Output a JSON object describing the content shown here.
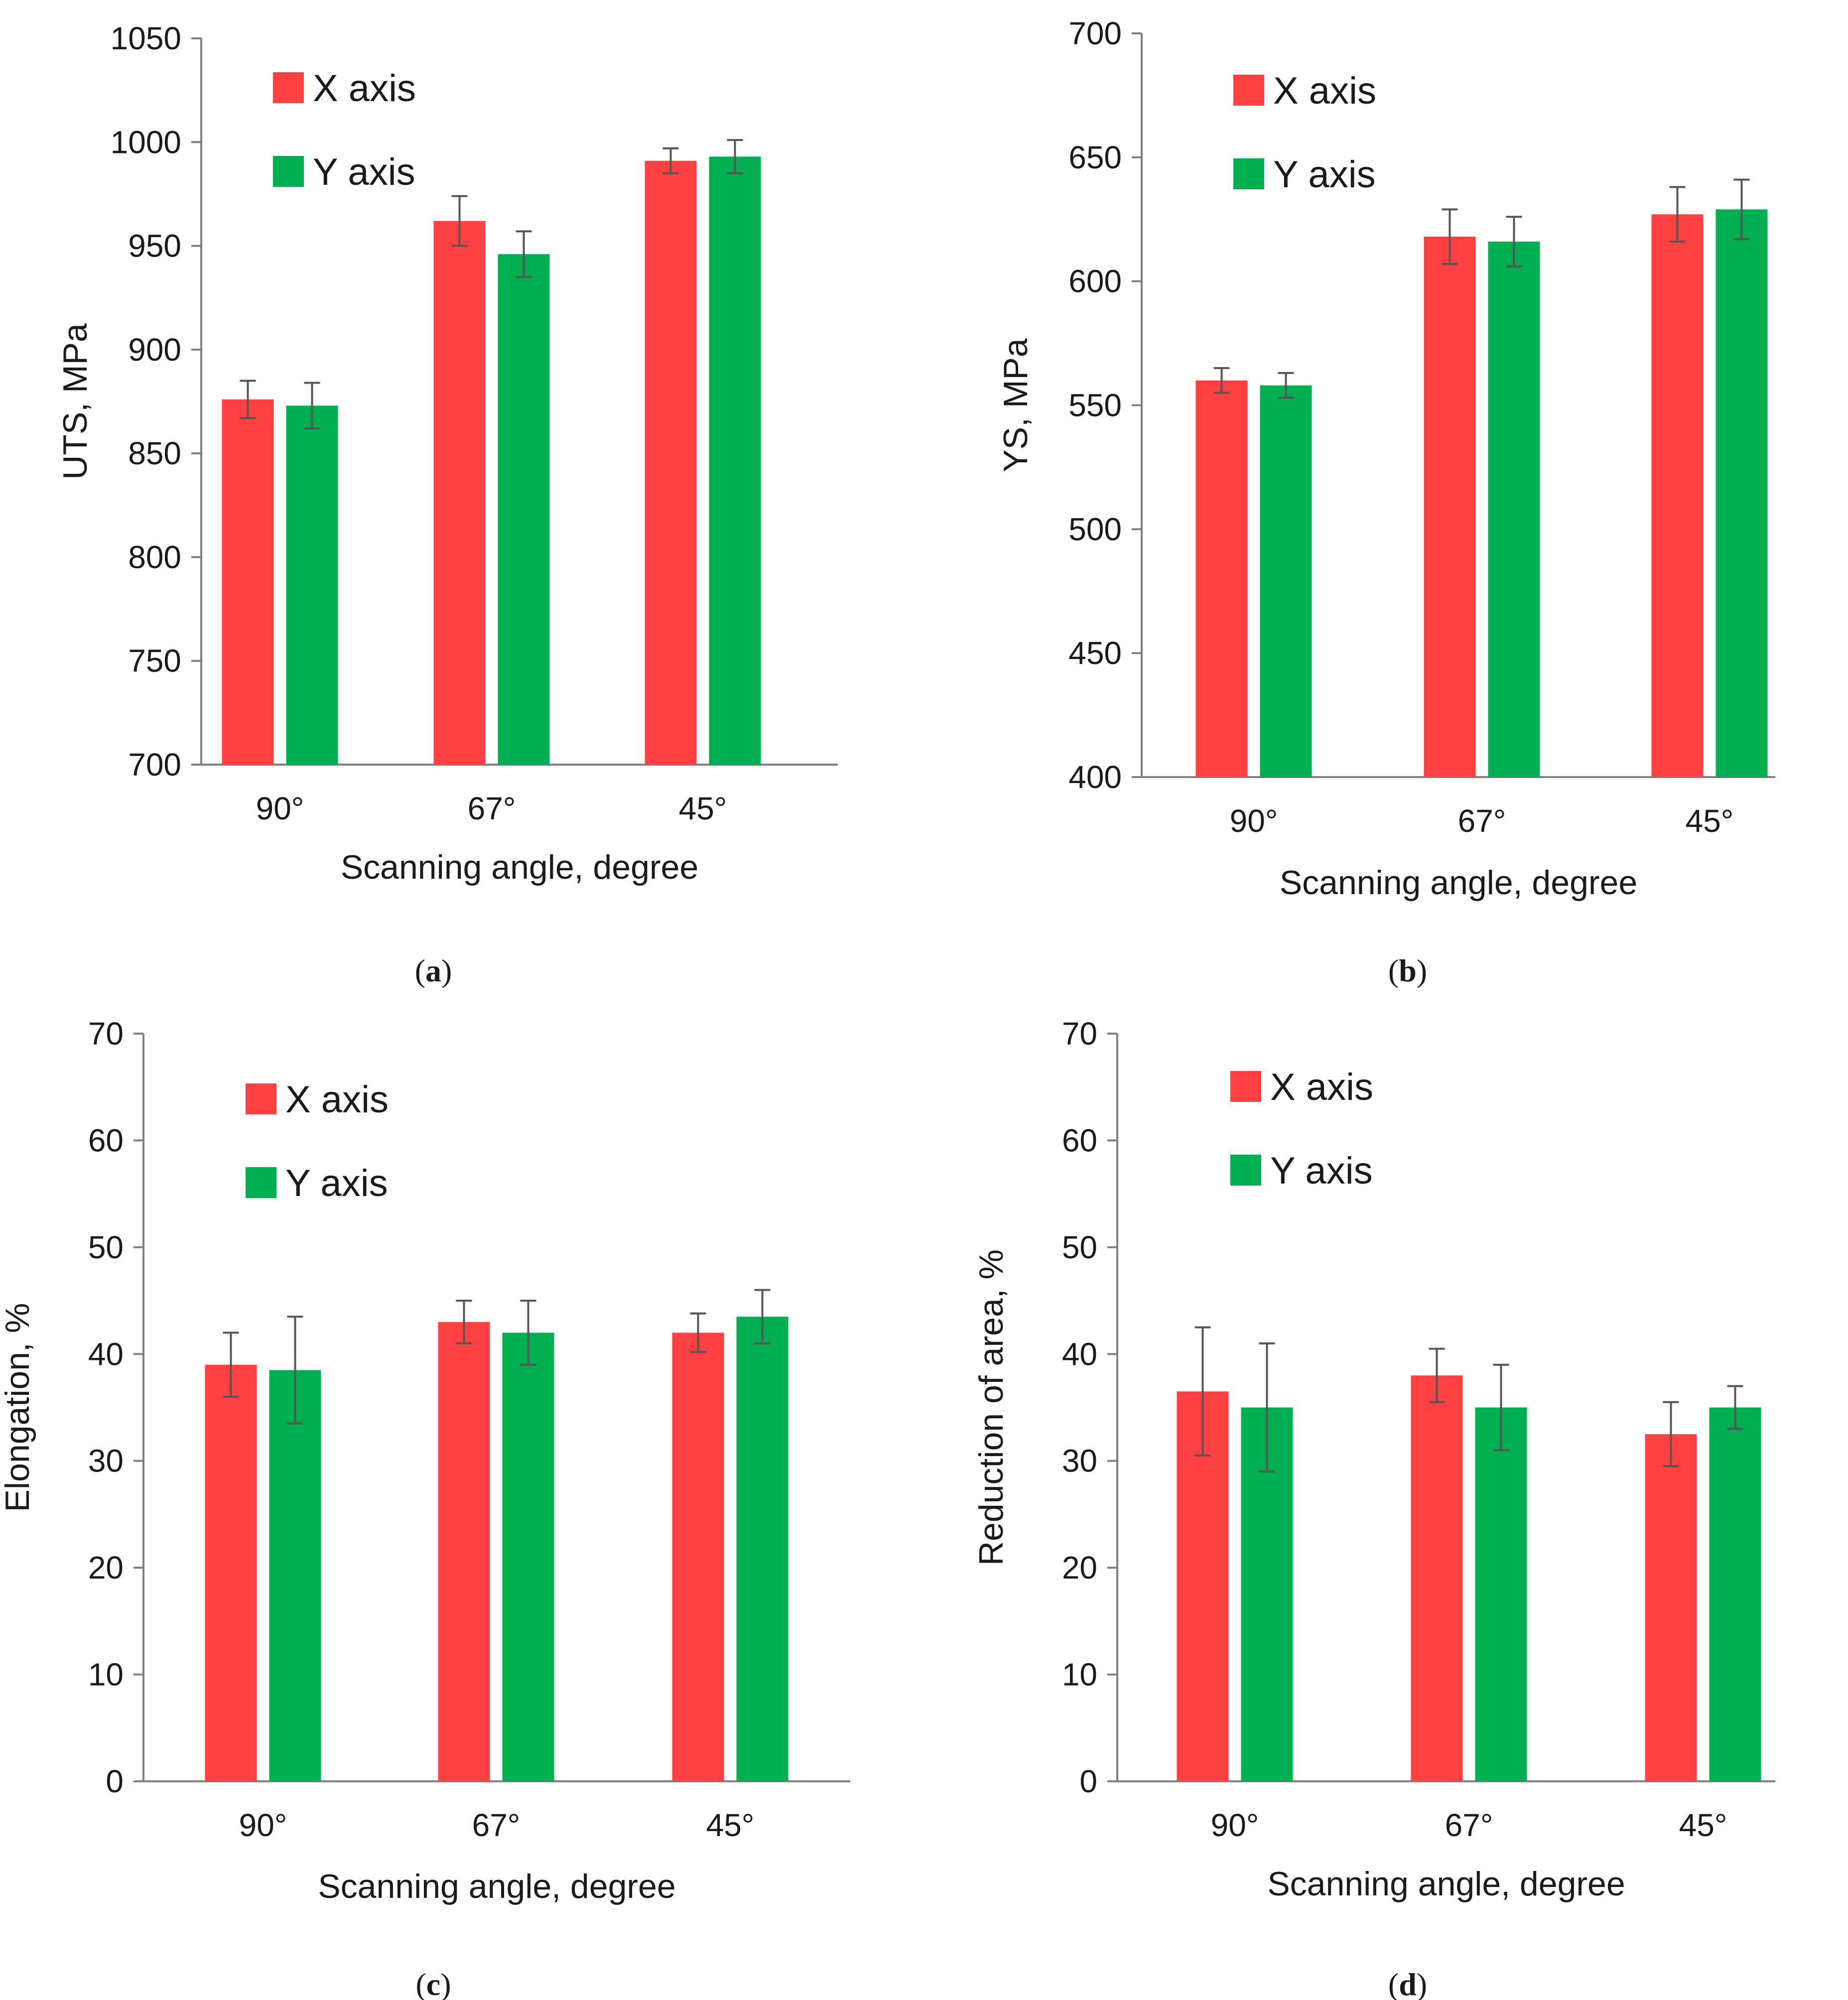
{
  "figure": {
    "panel_labels": [
      "(a)",
      "(b)",
      "(c)",
      "(d)"
    ]
  },
  "chart_data": [
    {
      "type": "bar",
      "panel": "(a)",
      "categories": [
        "90°",
        "67°",
        "45°"
      ],
      "xlabel": "Scanning angle, degree",
      "ylabel": "UTS, MPa",
      "ylim": [
        700,
        1050
      ],
      "yticks": [
        700,
        750,
        800,
        850,
        900,
        950,
        1000,
        1050
      ],
      "legend_position": "top-left",
      "series": [
        {
          "name": "X axis",
          "color": "#ff4040",
          "values": [
            876,
            962,
            991
          ],
          "errors": [
            9,
            12,
            6
          ]
        },
        {
          "name": "Y axis",
          "color": "#00b050",
          "values": [
            873,
            946,
            993
          ],
          "errors": [
            11,
            11,
            8
          ]
        }
      ]
    },
    {
      "type": "bar",
      "panel": "(b)",
      "categories": [
        "90°",
        "67°",
        "45°"
      ],
      "xlabel": "Scanning angle, degree",
      "ylabel": "YS, MPa",
      "ylim": [
        400,
        700
      ],
      "yticks": [
        400,
        450,
        500,
        550,
        600,
        650,
        700
      ],
      "legend_position": "top-left",
      "series": [
        {
          "name": "X axis",
          "color": "#ff4040",
          "values": [
            560,
            618,
            627
          ],
          "errors": [
            5,
            11,
            11
          ]
        },
        {
          "name": "Y axis",
          "color": "#00b050",
          "values": [
            558,
            616,
            629
          ],
          "errors": [
            5,
            10,
            12
          ]
        }
      ]
    },
    {
      "type": "bar",
      "panel": "(c)",
      "categories": [
        "90°",
        "67°",
        "45°"
      ],
      "xlabel": "Scanning angle, degree",
      "ylabel": "Elongation, %",
      "ylim": [
        0,
        70
      ],
      "yticks": [
        0,
        10,
        20,
        30,
        40,
        50,
        60,
        70
      ],
      "legend_position": "top-left",
      "series": [
        {
          "name": "X axis",
          "color": "#ff4040",
          "values": [
            39,
            43,
            42
          ],
          "errors": [
            3,
            2,
            1.8
          ]
        },
        {
          "name": "Y axis",
          "color": "#00b050",
          "values": [
            38.5,
            42,
            43.5
          ],
          "errors": [
            5,
            3,
            2.5
          ]
        }
      ]
    },
    {
      "type": "bar",
      "panel": "(d)",
      "categories": [
        "90°",
        "67°",
        "45°"
      ],
      "xlabel": "Scanning angle, degree",
      "ylabel": "Reduction of area, %",
      "ylim": [
        0,
        70
      ],
      "yticks": [
        0,
        10,
        20,
        30,
        40,
        50,
        60,
        70
      ],
      "legend_position": "top-left",
      "series": [
        {
          "name": "X axis",
          "color": "#ff4040",
          "values": [
            36.5,
            38,
            32.5
          ],
          "errors": [
            6,
            2.5,
            3
          ]
        },
        {
          "name": "Y axis",
          "color": "#00b050",
          "values": [
            35,
            35,
            35
          ],
          "errors": [
            6,
            4,
            2
          ]
        }
      ]
    }
  ]
}
